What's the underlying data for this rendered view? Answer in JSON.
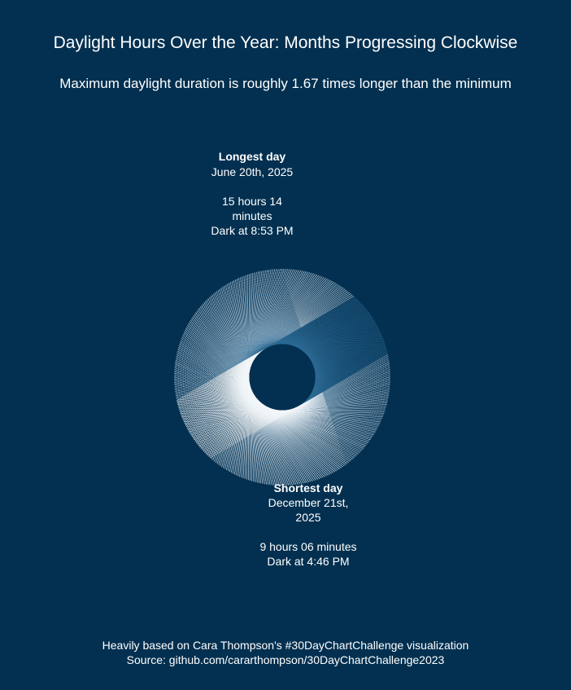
{
  "chart_data": {
    "type": "radial",
    "title": "Daylight Hours Over the Year: Months Progressing Clockwise",
    "subtitle": "Maximum daylight duration is roughly 1.67 times longer than the minimum",
    "annotations": {
      "longest": {
        "heading": "Longest day",
        "date_lines": [
          "June 20th, 2025"
        ],
        "duration_lines": [
          "15 hours 14",
          "minutes"
        ],
        "dark_line": "Dark at 8:53 PM"
      },
      "shortest": {
        "heading": "Shortest day",
        "date_lines": [
          "December 21st,",
          "2025"
        ],
        "duration_lines": [
          "9 hours 06 minutes"
        ],
        "dark_line": "Dark at 4:46 PM"
      }
    },
    "caption_lines": [
      "Heavily based on Cara Thompson's #30DayChartChallenge visualization",
      "Source: github.com/cararthompson/30DayChartChallenge2023"
    ],
    "year": 2025,
    "days": 365,
    "daylight_hours_min": 9.1,
    "daylight_hours_max": 15.23,
    "longest_day_index": 170,
    "colors": {
      "background": "#033050",
      "line_light": "#f2f6f9",
      "line_dark": "#2d6a94"
    }
  }
}
